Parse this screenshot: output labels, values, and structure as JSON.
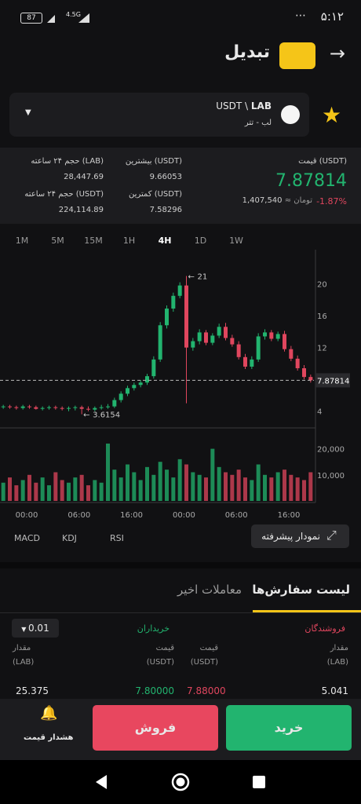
{
  "status_bar": {
    "time": "۵:۱۲",
    "battery": "87",
    "network": "4.5G"
  },
  "header": {
    "title": "تبدیل"
  },
  "market": {
    "base": "LAB",
    "quote": "USDT \\",
    "name": "لب - تتر"
  },
  "stats": {
    "price_label": "قیمت (USDT)",
    "price": "7.87814",
    "change": "-1.87%",
    "toman_value": "1,407,540",
    "toman_label": "≈ تومان",
    "high_label": "بیشترین (USDT)",
    "high": "9.66053",
    "low_label": "کمترین (USDT)",
    "low": "7.58296",
    "volume_lab_label": "حجم ۲۴ ساعته (LAB)",
    "volume_lab": "28,447.69",
    "volume_usdt_label": "حجم ۲۴ ساعته (USDT)",
    "volume_usdt": "224,114.89"
  },
  "timeframes": [
    "1M",
    "5M",
    "15M",
    "1H",
    "4H",
    "1D",
    "1W"
  ],
  "active_timeframe": 4,
  "chart_data": {
    "type": "candlestick",
    "open": [
      4.5,
      4.6,
      4.5,
      4.4,
      4.6,
      4.5,
      4.3,
      4.4,
      4.5,
      4.4,
      4.3,
      4.4,
      4.5,
      4.3,
      4.2,
      4.4,
      4.5,
      4.6,
      5.4,
      6.2,
      6.9,
      7.3,
      7.6,
      8.4,
      10.5,
      14.8,
      16.9,
      18.5,
      19.8,
      12.0,
      12.8,
      13.9,
      12.6,
      13.5,
      14.6,
      13.2,
      12.4,
      10.8,
      9.6,
      10.5,
      13.4,
      13.9,
      13.1,
      13.7,
      11.8,
      10.6,
      9.4,
      8.3
    ],
    "high": [
      4.8,
      4.8,
      4.7,
      4.8,
      4.8,
      4.7,
      4.6,
      4.7,
      4.7,
      4.6,
      4.6,
      4.7,
      4.7,
      4.6,
      4.6,
      4.8,
      4.9,
      5.7,
      6.5,
      7.2,
      7.6,
      7.9,
      8.7,
      10.9,
      15.2,
      17.3,
      18.9,
      20.2,
      21,
      13.2,
      14.3,
      14.2,
      13.8,
      15.0,
      15.1,
      13.6,
      12.8,
      11.2,
      10.9,
      13.8,
      14.3,
      14.2,
      14.0,
      14.1,
      12.2,
      11.0,
      9.8,
      8.6
    ],
    "low": [
      4.3,
      4.3,
      4.2,
      4.2,
      4.3,
      4.2,
      4.1,
      4.2,
      4.2,
      4.1,
      4.0,
      4.1,
      3.6154,
      4.0,
      4.0,
      4.2,
      4.3,
      4.4,
      5.1,
      5.9,
      6.6,
      7.0,
      7.3,
      8.1,
      10.2,
      14.4,
      16.5,
      18.2,
      5.0,
      11.6,
      12.4,
      12.3,
      12.3,
      13.2,
      12.9,
      12.1,
      10.5,
      9.3,
      9.3,
      10.2,
      13.0,
      12.8,
      12.8,
      11.5,
      10.3,
      9.1,
      8.0,
      7.6
    ],
    "close": [
      4.6,
      4.5,
      4.4,
      4.6,
      4.5,
      4.3,
      4.4,
      4.5,
      4.4,
      4.3,
      4.4,
      4.5,
      4.3,
      4.2,
      4.4,
      4.5,
      4.6,
      5.4,
      6.2,
      6.9,
      7.3,
      7.6,
      8.4,
      10.5,
      14.8,
      16.9,
      18.5,
      19.8,
      12.0,
      12.8,
      13.9,
      12.6,
      13.5,
      14.6,
      13.2,
      12.4,
      10.8,
      9.6,
      10.5,
      13.4,
      13.9,
      13.1,
      13.7,
      11.8,
      10.6,
      9.4,
      8.3,
      7.87814
    ],
    "volume": [
      7000,
      9000,
      6000,
      8000,
      10000,
      7000,
      9000,
      6000,
      11000,
      8000,
      7000,
      9000,
      10000,
      6000,
      8000,
      7000,
      22000,
      12000,
      9000,
      14000,
      11000,
      8000,
      13000,
      10000,
      15000,
      12000,
      9000,
      16000,
      14000,
      11000,
      10000,
      9000,
      20000,
      13000,
      11000,
      10000,
      12000,
      9000,
      8000,
      14000,
      10000,
      9000,
      11000,
      12000,
      10000,
      9000,
      8000,
      11000
    ],
    "ylim": [
      1.9,
      24.3
    ],
    "yticks": [
      4,
      12,
      16,
      20
    ],
    "vlim": [
      0,
      26500
    ],
    "vticks": [
      {
        "value": 10000,
        "label": "10,000"
      },
      {
        "value": 20000,
        "label": "20,000"
      }
    ],
    "x_labels": [
      "00:00",
      "06:00",
      "16:00",
      "00:00",
      "06:00",
      "16:00"
    ],
    "up_color": "#22b46f",
    "down_color": "#e0465e"
  },
  "indicators": [
    "MACD",
    "KDJ",
    "RSI"
  ],
  "advanced_chart": "نمودار پیشرفته",
  "tabs": [
    "لیست سفارش‌ها",
    "معاملات اخیر"
  ],
  "order_book": {
    "precision": "0.01",
    "sellers": "فروشندگان",
    "buyers": "خریداران",
    "amount_label": "مقدار",
    "price_label": "قیمت",
    "unit_lab": "(LAB)",
    "unit_usdt": "(USDT)",
    "rows": [
      [
        "5.041",
        "7.88000",
        "7.80000",
        "25.375"
      ]
    ]
  },
  "actions": {
    "buy": "خرید",
    "sell": "فروش",
    "alert": "هشدار قیمت"
  }
}
